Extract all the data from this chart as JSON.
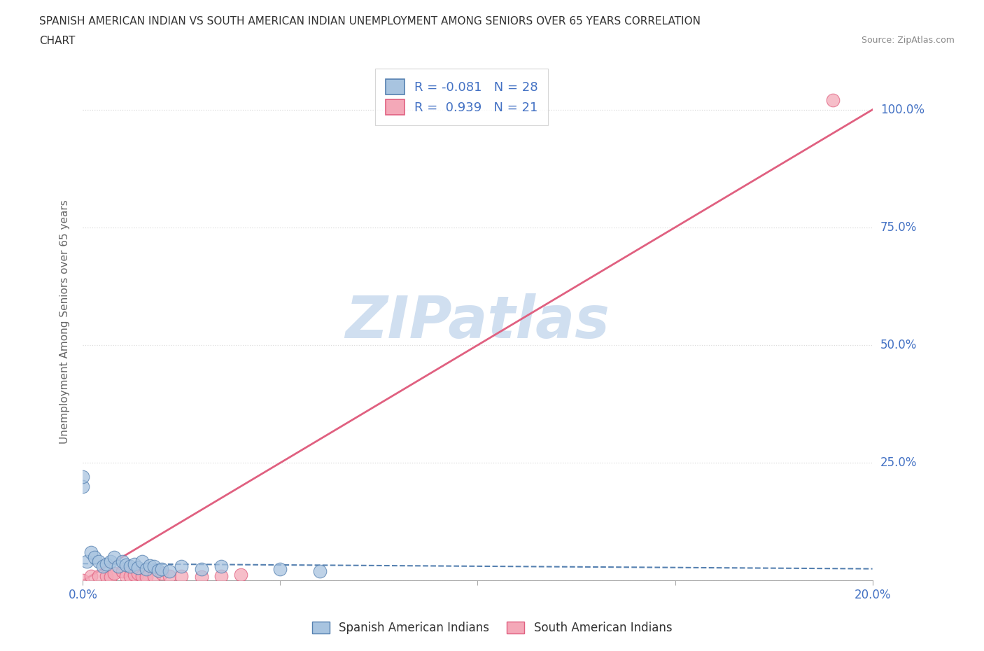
{
  "title_line1": "SPANISH AMERICAN INDIAN VS SOUTH AMERICAN INDIAN UNEMPLOYMENT AMONG SENIORS OVER 65 YEARS CORRELATION",
  "title_line2": "CHART",
  "source_text": "Source: ZipAtlas.com",
  "ylabel_text": "Unemployment Among Seniors over 65 years",
  "x_ticks": [
    0.0,
    0.05,
    0.1,
    0.15,
    0.2
  ],
  "y_ticks": [
    0.0,
    0.25,
    0.5,
    0.75,
    1.0
  ],
  "xlim": [
    0.0,
    0.2
  ],
  "ylim": [
    0.0,
    1.1
  ],
  "blue_R": -0.081,
  "blue_N": 28,
  "pink_R": 0.939,
  "pink_N": 21,
  "blue_color": "#A8C4E0",
  "pink_color": "#F4A8B8",
  "blue_line_color": "#5580B0",
  "pink_line_color": "#E06080",
  "text_color": "#4472C4",
  "grid_color": "#DDDDDD",
  "watermark_text": "ZIPatlas",
  "watermark_color": "#D0DFF0",
  "legend_label_blue": "Spanish American Indians",
  "legend_label_pink": "South American Indians",
  "blue_scatter_x": [
    0.0,
    0.0,
    0.001,
    0.002,
    0.003,
    0.004,
    0.005,
    0.006,
    0.007,
    0.008,
    0.009,
    0.01,
    0.011,
    0.012,
    0.013,
    0.014,
    0.015,
    0.016,
    0.017,
    0.018,
    0.019,
    0.02,
    0.022,
    0.025,
    0.03,
    0.035,
    0.05,
    0.06
  ],
  "blue_scatter_y": [
    0.2,
    0.22,
    0.04,
    0.06,
    0.05,
    0.04,
    0.03,
    0.035,
    0.04,
    0.05,
    0.03,
    0.04,
    0.033,
    0.03,
    0.035,
    0.028,
    0.04,
    0.025,
    0.032,
    0.03,
    0.022,
    0.025,
    0.02,
    0.03,
    0.025,
    0.03,
    0.025,
    0.02
  ],
  "pink_scatter_x": [
    0.0,
    0.002,
    0.004,
    0.006,
    0.007,
    0.008,
    0.01,
    0.011,
    0.012,
    0.013,
    0.014,
    0.015,
    0.016,
    0.018,
    0.02,
    0.022,
    0.025,
    0.03,
    0.035,
    0.04,
    0.19
  ],
  "pink_scatter_y": [
    0.0,
    0.01,
    0.01,
    0.01,
    0.008,
    0.015,
    0.02,
    0.01,
    0.01,
    0.012,
    0.015,
    0.01,
    0.008,
    0.01,
    0.015,
    0.01,
    0.01,
    0.008,
    0.01,
    0.012,
    1.02
  ],
  "blue_line_x": [
    0.0,
    0.2
  ],
  "blue_line_y": [
    0.036,
    0.025
  ],
  "pink_line_x": [
    0.0,
    0.2
  ],
  "pink_line_y": [
    0.0,
    1.0
  ]
}
